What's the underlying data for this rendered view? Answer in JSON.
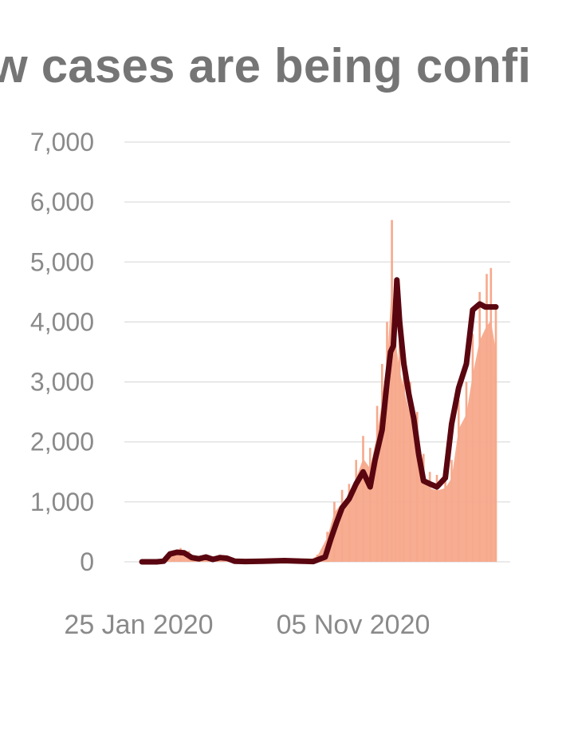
{
  "title": "w cases are being confi",
  "colors": {
    "daily_bars": "#f7a98c",
    "rolling_line": "#5a0610",
    "grid": "#dedede",
    "text": "#757575"
  },
  "chart_data": {
    "type": "bar",
    "title": "w cases are being confi",
    "xlabel": "",
    "ylabel": "",
    "ylim": [
      0,
      7000
    ],
    "y_ticks": [
      "7,000",
      "6,000",
      "5,000",
      "4,000",
      "3,000",
      "2,000",
      "1,000",
      "0"
    ],
    "y_tick_values": [
      7000,
      6000,
      5000,
      4000,
      3000,
      2000,
      1000,
      0
    ],
    "x_ticks": [
      "25 Jan 2020",
      "05 Nov 2020"
    ],
    "xlim": [
      "2020-01-25",
      "2021-06-12"
    ],
    "grid": true,
    "series": [
      {
        "kind": "daily-bars",
        "x": [
          "2020-01-25",
          "2020-02-15",
          "2020-03-01",
          "2020-03-10",
          "2020-03-20",
          "2020-04-01",
          "2020-04-10",
          "2020-04-20",
          "2020-05-01",
          "2020-05-15",
          "2020-06-01",
          "2020-06-15",
          "2020-07-01",
          "2020-08-01",
          "2020-09-01",
          "2020-09-20",
          "2020-10-01",
          "2020-10-15",
          "2020-10-25",
          "2020-11-05",
          "2020-11-15",
          "2020-11-25",
          "2020-12-05",
          "2020-12-15",
          "2020-12-25",
          "2021-01-01",
          "2021-01-08",
          "2021-01-15",
          "2021-01-20",
          "2021-01-26",
          "2021-02-01",
          "2021-02-10",
          "2021-02-20",
          "2021-03-01",
          "2021-03-10",
          "2021-03-20",
          "2021-04-01",
          "2021-04-10",
          "2021-04-20",
          "2021-05-01",
          "2021-05-10",
          "2021-05-20",
          "2021-05-30",
          "2021-06-05",
          "2021-06-12"
        ],
        "y": [
          0,
          5,
          20,
          180,
          230,
          180,
          100,
          60,
          40,
          120,
          20,
          10,
          0,
          20,
          30,
          40,
          120,
          500,
          1000,
          1200,
          1300,
          1700,
          2100,
          1900,
          2600,
          3300,
          4000,
          5700,
          4500,
          3900,
          3500,
          3000,
          2500,
          1800,
          1500,
          1450,
          1500,
          1700,
          2700,
          3000,
          3800,
          4500,
          4800,
          4900,
          4300
        ]
      },
      {
        "kind": "rolling-average-line",
        "x": [
          "2020-01-25",
          "2020-02-15",
          "2020-02-25",
          "2020-03-05",
          "2020-03-15",
          "2020-03-25",
          "2020-04-05",
          "2020-04-15",
          "2020-04-25",
          "2020-05-05",
          "2020-05-15",
          "2020-05-25",
          "2020-06-05",
          "2020-06-20",
          "2020-07-15",
          "2020-08-15",
          "2020-09-10",
          "2020-09-25",
          "2020-10-05",
          "2020-10-12",
          "2020-10-20",
          "2020-10-28",
          "2020-11-05",
          "2020-11-15",
          "2020-11-25",
          "2020-12-05",
          "2020-12-15",
          "2020-12-22",
          "2021-01-01",
          "2021-01-08",
          "2021-01-13",
          "2021-01-17",
          "2021-01-20",
          "2021-01-22",
          "2021-01-26",
          "2021-02-01",
          "2021-02-08",
          "2021-02-15",
          "2021-02-22",
          "2021-03-01",
          "2021-03-10",
          "2021-03-20",
          "2021-04-01",
          "2021-04-10",
          "2021-04-20",
          "2021-05-01",
          "2021-05-10",
          "2021-05-20",
          "2021-05-28",
          "2021-06-05",
          "2021-06-12"
        ],
        "y": [
          0,
          0,
          10,
          130,
          160,
          150,
          70,
          50,
          80,
          40,
          70,
          60,
          10,
          5,
          10,
          20,
          10,
          5,
          50,
          80,
          380,
          650,
          900,
          1050,
          1300,
          1500,
          1250,
          1700,
          2200,
          3000,
          3500,
          3600,
          4200,
          4700,
          4000,
          3300,
          2800,
          2400,
          1800,
          1350,
          1300,
          1250,
          1400,
          2300,
          2900,
          3300,
          4200,
          4300,
          4250,
          4250,
          4250
        ]
      }
    ]
  }
}
